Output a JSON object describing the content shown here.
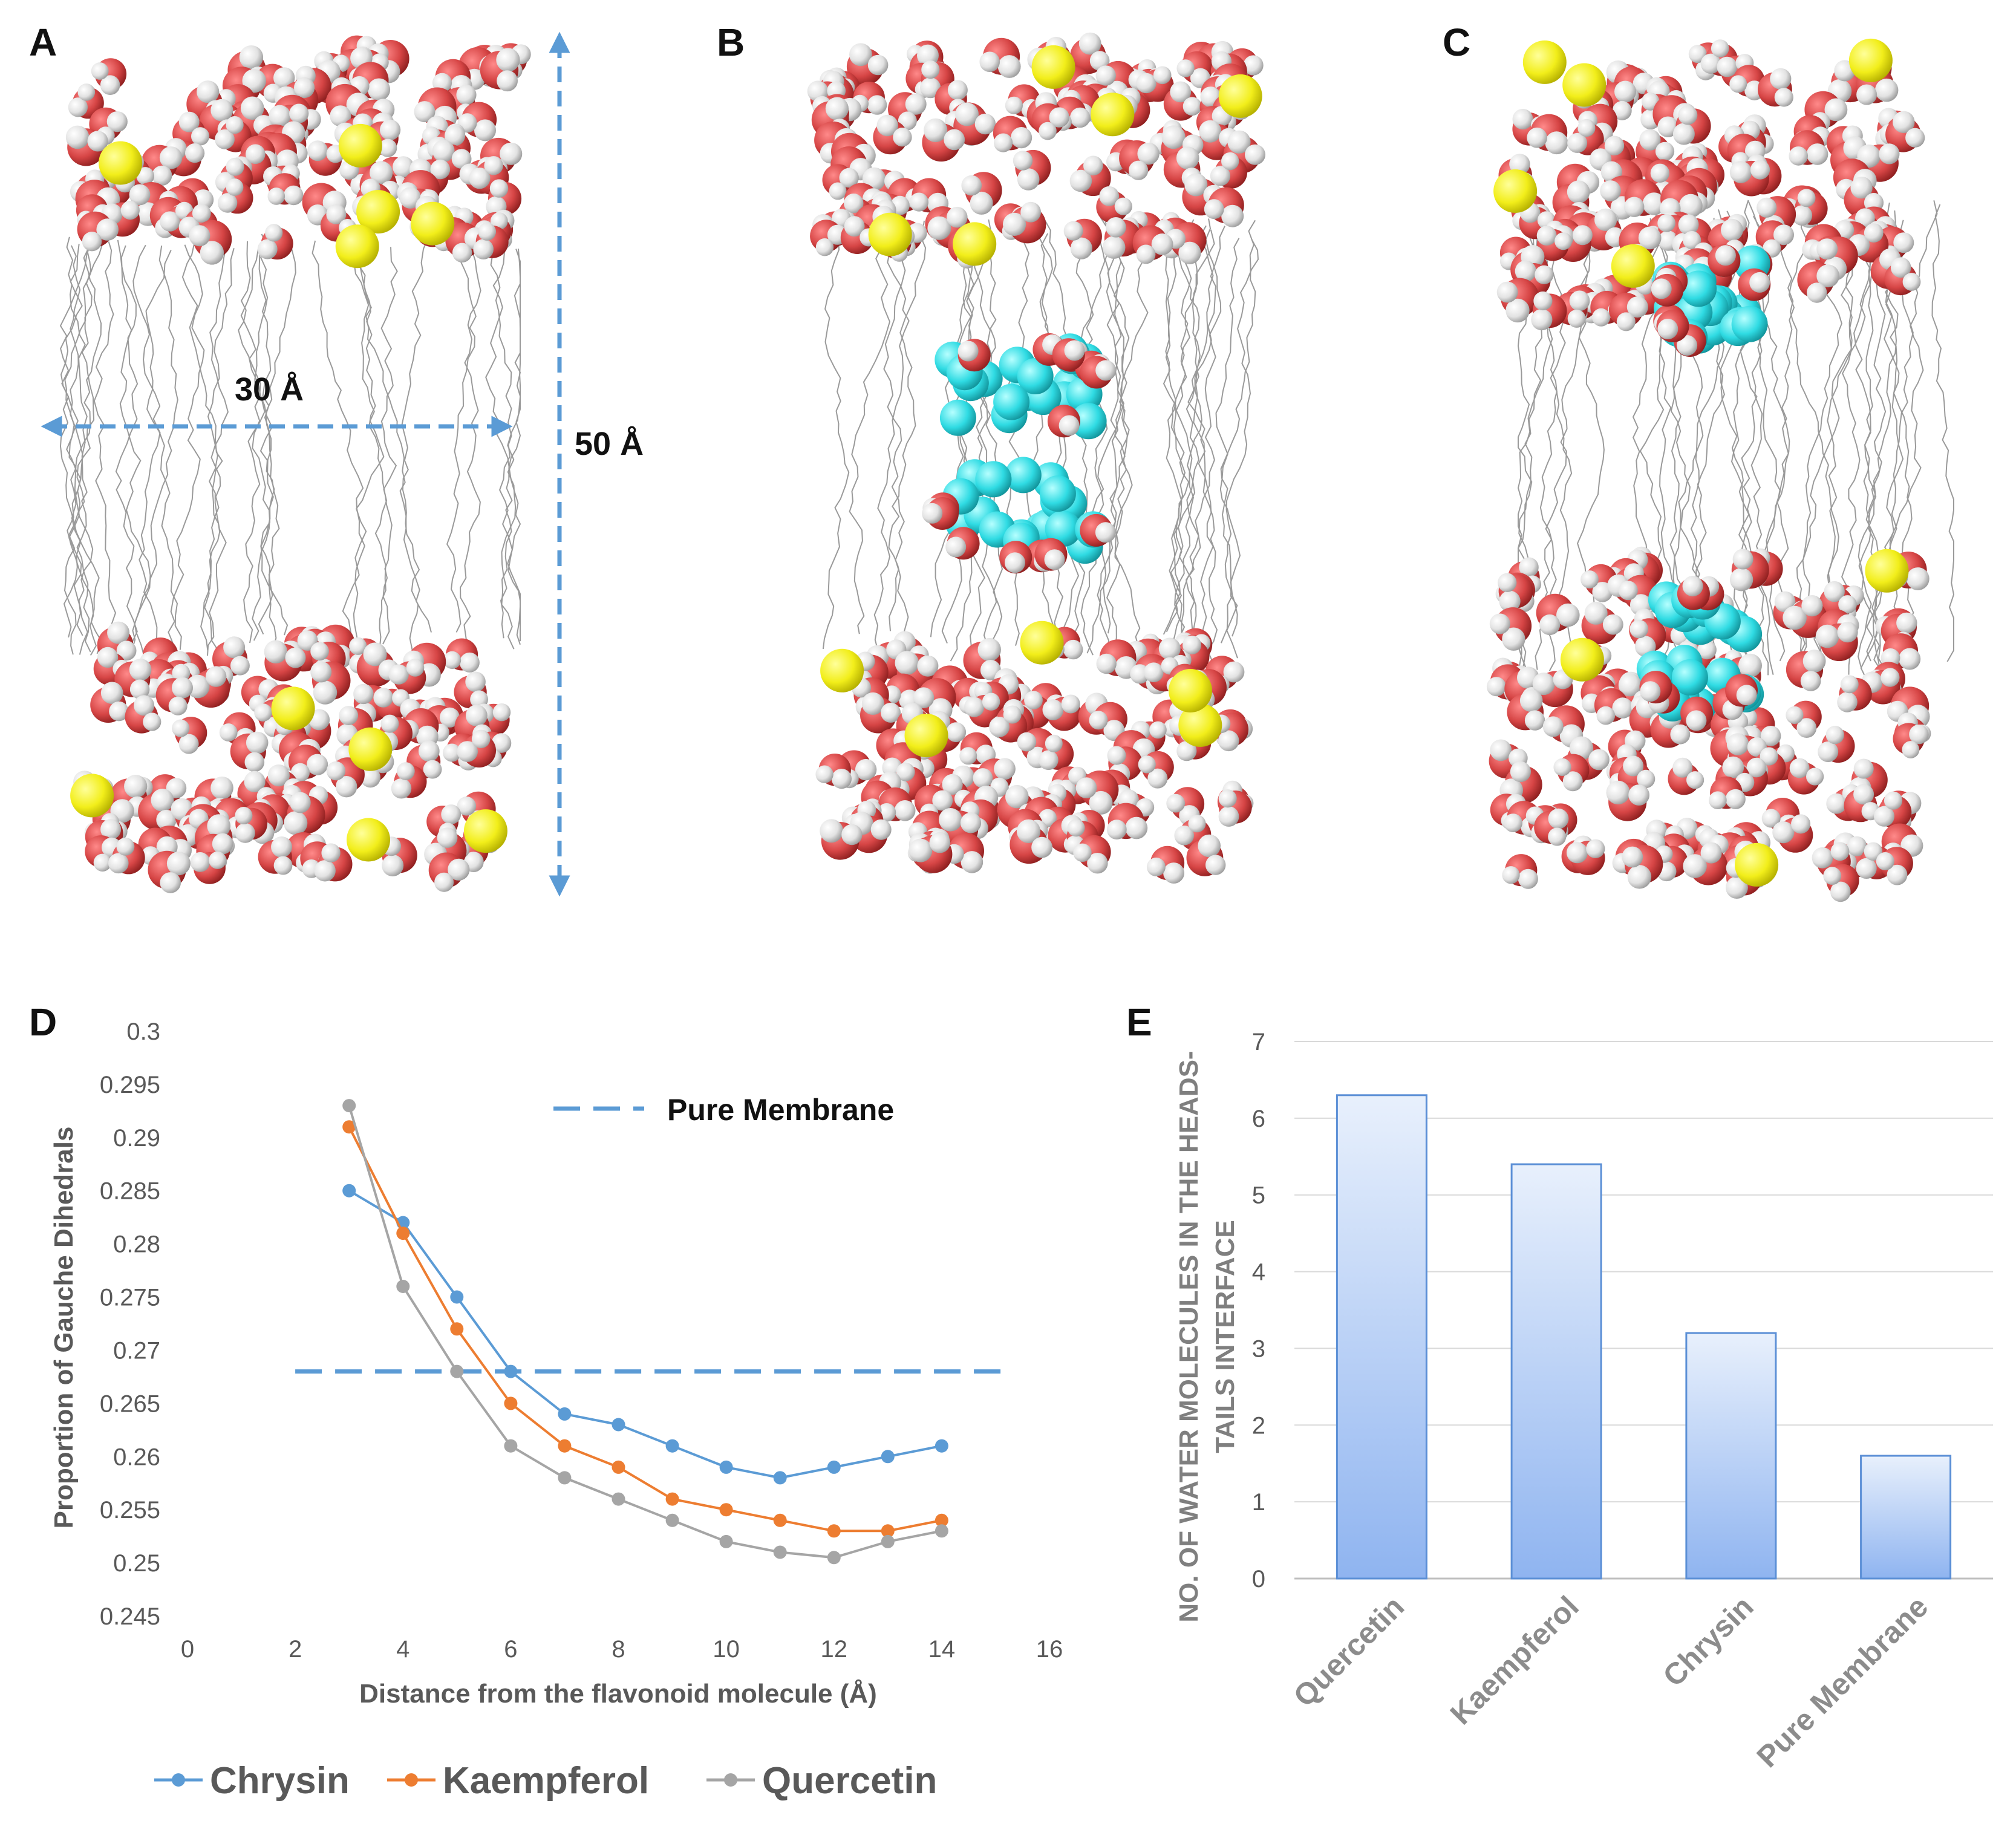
{
  "panels": {
    "a": "A",
    "b": "B",
    "c": "C",
    "d": "D",
    "e": "E"
  },
  "panel_a": {
    "width_label": "30 Å",
    "height_label": "50 Å"
  },
  "colors": {
    "oxygen": "#d64545",
    "hydrogen": "#e6e6e6",
    "ion": "#f2ee1a",
    "flavonoid": "#2fdbe3",
    "lipid": "#9a9a9a",
    "dim_arrow": "#5b9bd5",
    "chrysin": "#5b9bd5",
    "kaempferol": "#ed7d31",
    "quercetin": "#a5a5a5",
    "bar_top": "#e8f0fc",
    "bar_bottom": "#8fb4f0",
    "bar_edge": "#5b8fd6"
  },
  "chart_data": [
    {
      "type": "line",
      "title": "",
      "xlabel": "Distance from the flavonoid molecule (Å)",
      "ylabel": "Proportion of Gauche Dihedrals",
      "xlim": [
        0,
        16
      ],
      "ylim": [
        0.245,
        0.3
      ],
      "xticks": [
        "0",
        "2",
        "4",
        "6",
        "8",
        "10",
        "12",
        "14",
        "16"
      ],
      "yticks": [
        "0.245",
        "0.25",
        "0.255",
        "0.26",
        "0.265",
        "0.27",
        "0.275",
        "0.28",
        "0.285",
        "0.29",
        "0.295",
        "0.3"
      ],
      "x": [
        3,
        4,
        5,
        6,
        7,
        8,
        9,
        10,
        11,
        12,
        13,
        14
      ],
      "series": [
        {
          "name": "Chrysin",
          "values": [
            0.285,
            0.282,
            0.275,
            0.268,
            0.264,
            0.263,
            0.261,
            0.259,
            0.258,
            0.259,
            0.26,
            0.261
          ]
        },
        {
          "name": "Kaempferol",
          "values": [
            0.291,
            0.281,
            0.272,
            0.265,
            0.261,
            0.259,
            0.256,
            0.255,
            0.254,
            0.253,
            0.253,
            0.254
          ]
        },
        {
          "name": "Quercetin",
          "values": [
            0.293,
            0.276,
            0.268,
            0.261,
            0.258,
            0.256,
            0.254,
            0.252,
            0.251,
            0.2505,
            0.252,
            0.253
          ]
        }
      ],
      "reference": {
        "name": "Pure Membrane",
        "value": 0.268,
        "x_range": [
          2,
          15.3
        ]
      },
      "legend": [
        "Chrysin",
        "Kaempferol",
        "Quercetin"
      ],
      "legend_position": "bottom"
    },
    {
      "type": "bar",
      "title": "",
      "xlabel": "",
      "ylabel": "NO. OF WATER MOLECULES IN THE HEADS-TAILS INTERFACE",
      "ylabel_lines": [
        "NO. OF WATER MOLECULES IN THE HEADS-",
        "TAILS INTERFACE"
      ],
      "ylim": [
        0,
        7
      ],
      "yticks": [
        "0",
        "1",
        "2",
        "3",
        "4",
        "5",
        "6",
        "7"
      ],
      "categories": [
        "Quercetin",
        "Kaempferol",
        "Chrysin",
        "Pure Membrane"
      ],
      "values": [
        6.3,
        5.4,
        3.2,
        1.6
      ],
      "grid": true
    }
  ]
}
